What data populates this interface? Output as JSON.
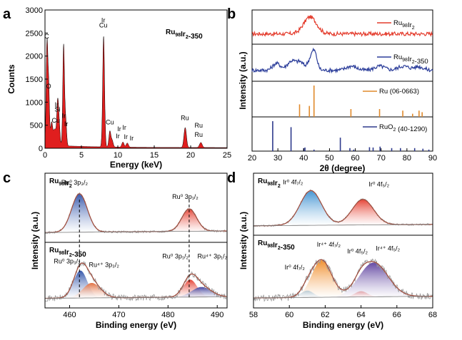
{
  "colors": {
    "eds_fill": "#e01e1e",
    "red": "#e43b2c",
    "blue": "#2b3d9a",
    "orange": "#e08a2c",
    "purple": "#5b4fb0",
    "ref_blue": "#2e3a8c",
    "ir0_blue": "#3a8fd0",
    "ir4_orange": "#f08a24",
    "ir4_purple": "#5c3f9e"
  },
  "chart_data": [
    {
      "panel": "a",
      "type": "area",
      "label": "Ru98Ir2-350",
      "xlabel": "Energy (keV)",
      "ylabel": "Counts",
      "xlim": [
        0,
        25
      ],
      "ylim": [
        0,
        3000
      ],
      "xticks": [
        0,
        5,
        10,
        15,
        20,
        25
      ],
      "yticks": [
        0,
        500,
        1000,
        1500,
        2000,
        2500,
        3000
      ],
      "peaks": [
        {
          "x": 0.28,
          "y": 2250,
          "w": 0.12
        },
        {
          "x": 0.52,
          "y": 1100,
          "w": 0.1
        },
        {
          "x": 0.9,
          "y": 480,
          "w": 0.15
        },
        {
          "x": 1.35,
          "y": 350,
          "w": 0.2
        },
        {
          "x": 1.74,
          "y": 880,
          "w": 0.12
        },
        {
          "x": 1.95,
          "y": 420,
          "w": 0.12
        },
        {
          "x": 2.56,
          "y": 2180,
          "w": 0.12
        },
        {
          "x": 2.85,
          "y": 520,
          "w": 0.12
        },
        {
          "x": 8.05,
          "y": 2400,
          "w": 0.13
        },
        {
          "x": 8.9,
          "y": 330,
          "w": 0.13
        },
        {
          "x": 9.2,
          "y": 150,
          "w": 0.15
        },
        {
          "x": 10.7,
          "y": 110,
          "w": 0.15
        },
        {
          "x": 11.3,
          "y": 90,
          "w": 0.15
        },
        {
          "x": 19.25,
          "y": 430,
          "w": 0.17
        },
        {
          "x": 21.4,
          "y": 110,
          "w": 0.18
        }
      ],
      "peak_labels": [
        {
          "text": "C",
          "x": 0.25,
          "y": 2380
        },
        {
          "text": "O",
          "x": 0.5,
          "y": 1300
        },
        {
          "text": "Cu",
          "x": 1.5,
          "y": 560
        },
        {
          "text": "Ir",
          "x": 1.6,
          "y": 900
        },
        {
          "text": "Si",
          "x": 1.7,
          "y": 800
        },
        {
          "text": "Ir",
          "x": 2.6,
          "y": 660
        },
        {
          "text": "Ir",
          "x": 2.9,
          "y": 480
        },
        {
          "text": "Ir",
          "x": 8.0,
          "y": 2730
        },
        {
          "text": "Cu",
          "x": 8.0,
          "y": 2620
        },
        {
          "text": "Cu",
          "x": 8.9,
          "y": 520
        },
        {
          "text": "Ir",
          "x": 10.2,
          "y": 370
        },
        {
          "text": "Ir",
          "x": 10.9,
          "y": 400
        },
        {
          "text": "Ir",
          "x": 10.0,
          "y": 220
        },
        {
          "text": "Ir",
          "x": 11.1,
          "y": 200
        },
        {
          "text": "Ir",
          "x": 11.9,
          "y": 170
        },
        {
          "text": "Ru",
          "x": 19.2,
          "y": 610
        },
        {
          "text": "Ru",
          "x": 21.1,
          "y": 450
        },
        {
          "text": "Ru",
          "x": 21.1,
          "y": 250
        }
      ]
    },
    {
      "panel": "b",
      "type": "line",
      "xlabel": "2θ (degree)",
      "ylabel": "Intensity (a.u.)",
      "xlim": [
        20,
        90
      ],
      "xticks": [
        20,
        30,
        40,
        50,
        60,
        70,
        80,
        90
      ],
      "series": [
        {
          "name": "Ru98Ir2",
          "color": "#e43b2c",
          "peaks": [
            {
              "x": 42.5,
              "h": 0.7,
              "w": 2.5
            }
          ],
          "noise": 0.08
        },
        {
          "name": "Ru98Ir2-350",
          "color": "#2b3d9a",
          "peaks": [
            {
              "x": 29.5,
              "h": 0.25,
              "w": 1.5
            },
            {
              "x": 35.5,
              "h": 0.35,
              "w": 1.8
            },
            {
              "x": 38.8,
              "h": 0.25,
              "w": 1.2
            },
            {
              "x": 42.5,
              "h": 0.35,
              "w": 1.2
            },
            {
              "x": 44.2,
              "h": 0.6,
              "w": 1.0
            },
            {
              "x": 58.5,
              "h": 0.15,
              "w": 2.0
            },
            {
              "x": 69.5,
              "h": 0.15,
              "w": 2.0
            },
            {
              "x": 78.5,
              "h": 0.15,
              "w": 2.0
            },
            {
              "x": 84.5,
              "h": 0.13,
              "w": 2.0
            }
          ],
          "noise": 0.07
        }
      ],
      "references": [
        {
          "name": "Ru (06-0663)",
          "color": "#e08a2c",
          "positions": [
            38.4,
            42.2,
            44.0,
            58.3,
            69.4,
            78.4,
            82.2,
            84.7,
            85.9
          ],
          "heights": [
            0.4,
            0.35,
            1.0,
            0.25,
            0.25,
            0.2,
            0.1,
            0.2,
            0.15
          ]
        },
        {
          "name": "RuO2 (40-1290)",
          "color": "#2e3a8c",
          "positions": [
            28.0,
            35.1,
            40.0,
            40.5,
            44.0,
            54.2,
            57.9,
            59.4,
            65.5,
            66.9,
            69.6,
            74.1,
            77.5,
            83.0,
            86.2,
            88.5
          ],
          "heights": [
            1.0,
            0.8,
            0.1,
            0.12,
            0.05,
            0.45,
            0.1,
            0.05,
            0.13,
            0.12,
            0.15,
            0.1,
            0.1,
            0.1,
            0.08,
            0.05
          ]
        }
      ]
    },
    {
      "panel": "c",
      "type": "line",
      "xlabel": "Binding energy (eV)",
      "ylabel": "Intensity (a.u.)",
      "xlim": [
        455,
        492
      ],
      "xticks": [
        460,
        470,
        480,
        490
      ],
      "top_label": "Ru98Ir2",
      "bottom_label": "Ru98Ir2-350",
      "top_peaks": [
        {
          "x": 462.0,
          "h": 0.72,
          "w": 1.6,
          "color": "#2b4fa8"
        },
        {
          "x": 484.3,
          "h": 0.42,
          "w": 1.5,
          "color": "#e43b2c"
        }
      ],
      "bottom_peaks": [
        {
          "x": 462.2,
          "h": 0.55,
          "w": 1.4,
          "color": "#2b4fa8"
        },
        {
          "x": 464.5,
          "h": 0.3,
          "w": 1.8,
          "color": "#e06a3a"
        },
        {
          "x": 484.5,
          "h": 0.35,
          "w": 1.4,
          "color": "#e43b2c"
        },
        {
          "x": 486.8,
          "h": 0.2,
          "w": 2.0,
          "color": "#3a3a9a"
        }
      ],
      "annotations_top": [
        {
          "text": "Ru⁰ 3p₃/₂",
          "x": 461.0,
          "y": 0.95
        },
        {
          "text": "Ru⁰ 3p₁/₂",
          "x": 483.5,
          "y": 0.68
        }
      ],
      "annotations_bottom": [
        {
          "text": "Ru⁰ 3p₃/₂",
          "x": 459.5,
          "y": 0.75
        },
        {
          "text": "Ru⁴⁺ 3p₃/₂",
          "x": 467.0,
          "y": 0.68
        },
        {
          "text": "Ru⁰ 3p₁/₂",
          "x": 481.5,
          "y": 0.85
        },
        {
          "text": "Ru⁴⁺ 3p₁/₂",
          "x": 489.0,
          "y": 0.85
        }
      ]
    },
    {
      "panel": "d",
      "type": "line",
      "xlabel": "Binding energy (eV)",
      "ylabel": "Intensity (a.u.)",
      "xlim": [
        58,
        68
      ],
      "xticks": [
        58,
        60,
        62,
        64,
        66,
        68
      ],
      "top_label": "Ru98Ir2",
      "bottom_label": "Ru98Ir2-350",
      "top_peaks": [
        {
          "x": 61.2,
          "h": 0.75,
          "w": 0.6,
          "color": "#3a8fd0"
        },
        {
          "x": 64.1,
          "h": 0.55,
          "w": 0.6,
          "color": "#e43b2c"
        }
      ],
      "bottom_peaks": [
        {
          "x": 61.0,
          "h": 0.12,
          "w": 0.35,
          "color": "#3a8fd0"
        },
        {
          "x": 61.8,
          "h": 0.65,
          "w": 0.55,
          "color": "#f08a24"
        },
        {
          "x": 64.0,
          "h": 0.1,
          "w": 0.35,
          "color": "#e43b2c"
        },
        {
          "x": 64.7,
          "h": 0.6,
          "w": 0.8,
          "color": "#5c3f9e"
        }
      ],
      "annotations_top": [
        {
          "text": "Ir⁰ 4f₇/₂",
          "x": 60.2,
          "y": 0.95
        },
        {
          "text": "Ir⁰ 4f₅/₂",
          "x": 65.0,
          "y": 0.9
        }
      ],
      "annotations_bottom": [
        {
          "text": "Ir⁴⁺ 4f₇/₂",
          "x": 62.2,
          "y": 0.95
        },
        {
          "text": "Ir⁰ 4f₅/₂",
          "x": 63.8,
          "y": 0.83
        },
        {
          "text": "Ir⁴⁺ 4f₅/₂",
          "x": 65.5,
          "y": 0.88
        },
        {
          "text": "Ir⁰ 4f₇/₂",
          "x": 60.3,
          "y": 0.55
        }
      ]
    }
  ]
}
